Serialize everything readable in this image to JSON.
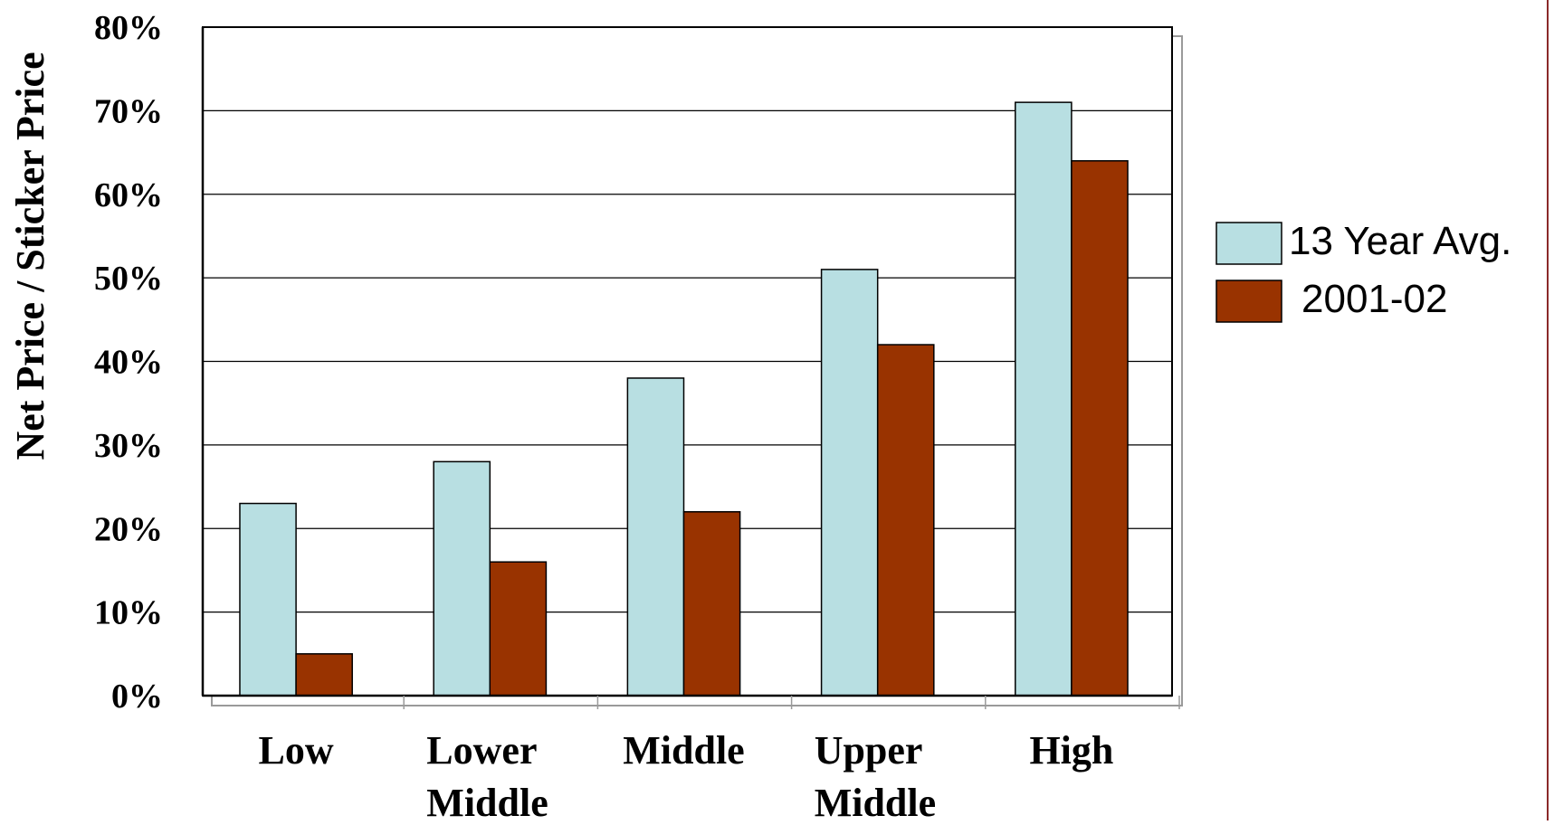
{
  "chart_data": {
    "type": "bar",
    "title": "",
    "xlabel": "",
    "ylabel": "Net Price / Sticker Price",
    "ylim": [
      0,
      80
    ],
    "y_ticks": [
      "0%",
      "10%",
      "20%",
      "30%",
      "40%",
      "50%",
      "60%",
      "70%",
      "80%"
    ],
    "y_tick_values": [
      0,
      10,
      20,
      30,
      40,
      50,
      60,
      70,
      80
    ],
    "categories": [
      [
        "Low"
      ],
      [
        "Lower",
        "Middle"
      ],
      [
        "Middle"
      ],
      [
        "Upper",
        "Middle"
      ],
      [
        "High"
      ]
    ],
    "series": [
      {
        "name": "13 Year Avg.",
        "color": "#b8dfe2",
        "values": [
          23,
          28,
          38,
          51,
          71
        ]
      },
      {
        "name": "2001-02",
        "color": "#993300",
        "values": [
          5,
          16,
          22,
          42,
          64
        ]
      }
    ],
    "grid": true,
    "legend_position": "right"
  },
  "colors": {
    "frame_right_line": "#8b2a2a",
    "axis": "#000000",
    "gridline": "#000000"
  }
}
